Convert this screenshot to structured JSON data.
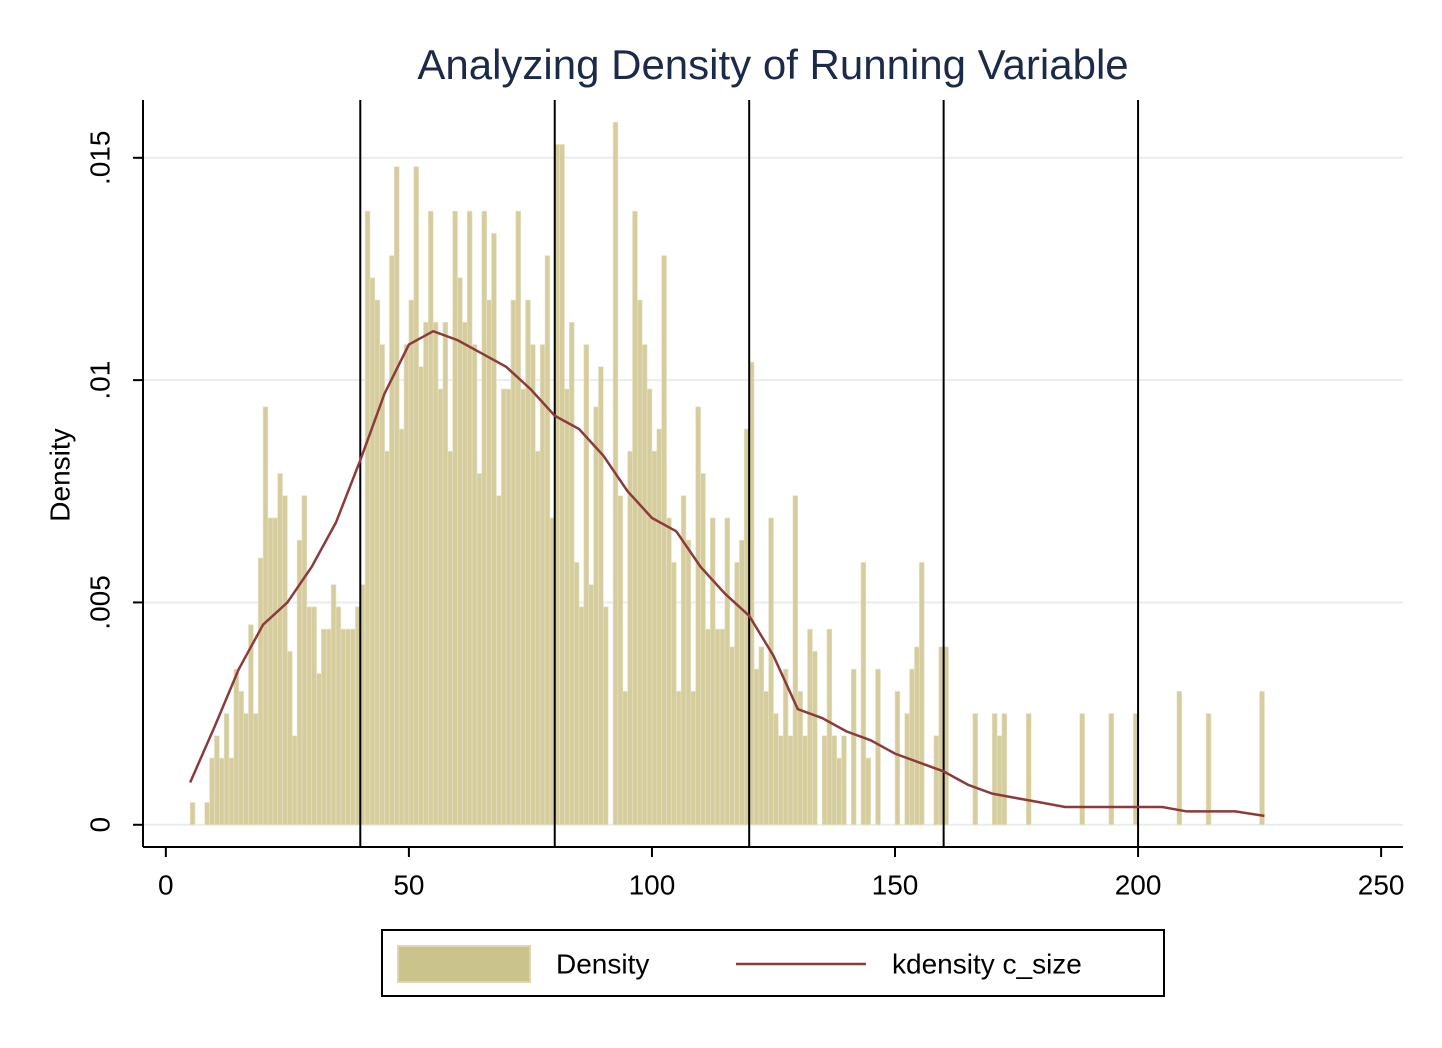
{
  "chart_data": {
    "type": "histogram",
    "title": "Analyzing Density of Running Variable",
    "ylabel": "Density",
    "name": "Density",
    "color": "#d6cd9f",
    "bins": [
      5,
      6,
      7,
      8,
      9,
      10,
      11,
      12,
      13,
      14,
      15,
      16,
      17,
      18,
      19,
      20,
      21,
      22,
      23,
      24,
      25,
      26,
      27,
      28,
      29,
      30,
      31,
      32,
      33,
      34,
      35,
      36,
      37,
      38,
      39,
      40,
      41,
      42,
      43,
      44,
      45,
      46,
      47,
      48,
      49,
      50,
      51,
      52,
      53,
      54,
      55,
      56,
      57,
      58,
      59,
      60,
      61,
      62,
      63,
      64,
      65,
      66,
      67,
      68,
      69,
      70,
      71,
      72,
      73,
      74,
      75,
      76,
      77,
      78,
      79,
      80,
      81,
      82,
      83,
      84,
      85,
      86,
      87,
      88,
      89,
      90,
      91,
      92,
      93,
      94,
      95,
      96,
      97,
      98,
      99,
      100,
      101,
      102,
      103,
      104,
      105,
      106,
      107,
      108,
      109,
      110,
      111,
      112,
      113,
      114,
      115,
      116,
      117,
      118,
      119,
      120,
      121,
      122,
      123,
      124,
      125,
      126,
      127,
      128,
      129,
      130,
      131,
      132,
      133,
      134,
      135,
      136,
      137,
      138,
      139,
      140,
      141,
      142,
      143,
      144,
      145,
      146,
      147,
      148,
      149,
      150,
      151,
      152,
      153,
      154,
      155,
      156,
      157,
      158,
      159,
      160,
      161,
      162,
      163,
      164,
      165,
      166,
      167,
      168,
      169,
      170,
      171,
      172,
      173,
      174,
      175,
      176,
      177,
      178,
      179,
      180,
      181,
      182,
      183,
      184,
      185,
      186,
      187,
      188,
      189,
      190,
      191,
      192,
      193,
      194,
      195,
      196,
      197,
      198,
      199,
      200,
      201,
      202,
      203,
      204,
      205,
      206,
      207,
      208,
      209,
      210,
      211,
      212,
      213,
      214,
      215,
      216,
      217,
      218,
      219,
      220,
      221,
      222,
      223,
      224,
      225,
      226
    ],
    "values": [
      0.0005,
      0,
      0,
      0.0005,
      0.0015,
      0.002,
      0.0015,
      0.0025,
      0.0015,
      0.0035,
      0.003,
      0.0025,
      0.0045,
      0.0025,
      0.006,
      0.0094,
      0.0069,
      0.0069,
      0.0079,
      0.0074,
      0.0039,
      0.002,
      0.0064,
      0.0074,
      0.0049,
      0.0049,
      0.0034,
      0.0044,
      0.0044,
      0.0054,
      0.0049,
      0.0044,
      0.0044,
      0.0044,
      0.0049,
      0.0054,
      0.0138,
      0.0123,
      0.0118,
      0.0108,
      0.0084,
      0.0128,
      0.0148,
      0.0089,
      0.0108,
      0.0118,
      0.0148,
      0.0103,
      0.0113,
      0.0138,
      0.0113,
      0.0098,
      0.0113,
      0.0084,
      0.0138,
      0.0123,
      0.0113,
      0.0138,
      0.0108,
      0.0079,
      0.0138,
      0.0118,
      0.0133,
      0.0074,
      0.0098,
      0.0098,
      0.0118,
      0.0138,
      0.0098,
      0.0118,
      0.0108,
      0.0084,
      0.0108,
      0.0128,
      0.0069,
      0.0153,
      0.0153,
      0.0098,
      0.0113,
      0.0059,
      0.0049,
      0.0108,
      0.0054,
      0.0094,
      0.0103,
      0.0049,
      0,
      0.0158,
      0.0074,
      0.003,
      0.0084,
      0.0138,
      0.0118,
      0.0108,
      0.0098,
      0.0084,
      0.0089,
      0.0128,
      0.0069,
      0.0059,
      0.003,
      0.0074,
      0.0064,
      0.003,
      0.0094,
      0.0079,
      0.0044,
      0.0069,
      0.0044,
      0.0044,
      0.0069,
      0.004,
      0.0059,
      0.0064,
      0.0089,
      0.0104,
      0.0035,
      0.004,
      0.003,
      0.0069,
      0.0025,
      0.002,
      0.0035,
      0.002,
      0.0074,
      0.003,
      0.002,
      0.0044,
      0.0039,
      0,
      0.002,
      0.0044,
      0.002,
      0.0015,
      0.002,
      0,
      0.0035,
      0,
      0.0059,
      0.0015,
      0,
      0.0035,
      0,
      0,
      0,
      0.003,
      0,
      0.0025,
      0.0035,
      0.004,
      0.0059,
      0,
      0,
      0.002,
      0.004,
      0.004,
      0,
      0,
      0,
      0,
      0,
      0.0025,
      0,
      0,
      0,
      0.0025,
      0.002,
      0.0025,
      0,
      0,
      0,
      0,
      0.0025,
      0,
      0,
      0,
      0,
      0,
      0,
      0,
      0,
      0,
      0,
      0.0025,
      0,
      0,
      0,
      0,
      0,
      0.0025,
      0,
      0,
      0,
      0,
      0.0025,
      0,
      0,
      0,
      0,
      0,
      0,
      0,
      0,
      0.003,
      0,
      0,
      0,
      0,
      0,
      0.0025,
      0,
      0,
      0,
      0,
      0,
      0,
      0,
      0,
      0,
      0,
      0.003
    ],
    "series": [
      {
        "name": "kdensity c_size",
        "color": "#8c3b3b",
        "x": [
          5,
          10,
          15,
          20,
          25,
          30,
          35,
          40,
          45,
          50,
          55,
          60,
          65,
          70,
          75,
          80,
          85,
          90,
          95,
          100,
          105,
          110,
          115,
          120,
          125,
          130,
          135,
          140,
          145,
          150,
          155,
          160,
          165,
          170,
          175,
          180,
          185,
          190,
          195,
          200,
          205,
          210,
          215,
          220,
          226
        ],
        "values": [
          0.00095,
          0.0022,
          0.0035,
          0.0045,
          0.005,
          0.0058,
          0.0068,
          0.0082,
          0.0097,
          0.0108,
          0.0111,
          0.0109,
          0.0106,
          0.0103,
          0.0098,
          0.0092,
          0.0089,
          0.0083,
          0.0075,
          0.0069,
          0.0066,
          0.0058,
          0.0052,
          0.0047,
          0.0038,
          0.0026,
          0.0024,
          0.0021,
          0.0019,
          0.0016,
          0.0014,
          0.0012,
          0.0009,
          0.0007,
          0.0006,
          0.0005,
          0.0004,
          0.0004,
          0.0004,
          0.0004,
          0.0004,
          0.0003,
          0.0003,
          0.0003,
          0.0002
        ]
      }
    ],
    "xlines": [
      40,
      80,
      120,
      160,
      200
    ],
    "xlim": [
      -4.7,
      254.5
    ],
    "xticks": [
      0,
      50,
      100,
      150,
      200,
      250
    ],
    "ylim": [
      -0.0005,
      0.0163
    ],
    "yticks": [
      0,
      {
        "value": 0.005,
        "label": ".005"
      },
      {
        "value": 0.01,
        "label": ".01"
      },
      {
        "value": 0.015,
        "label": ".015"
      }
    ],
    "grid": true
  }
}
